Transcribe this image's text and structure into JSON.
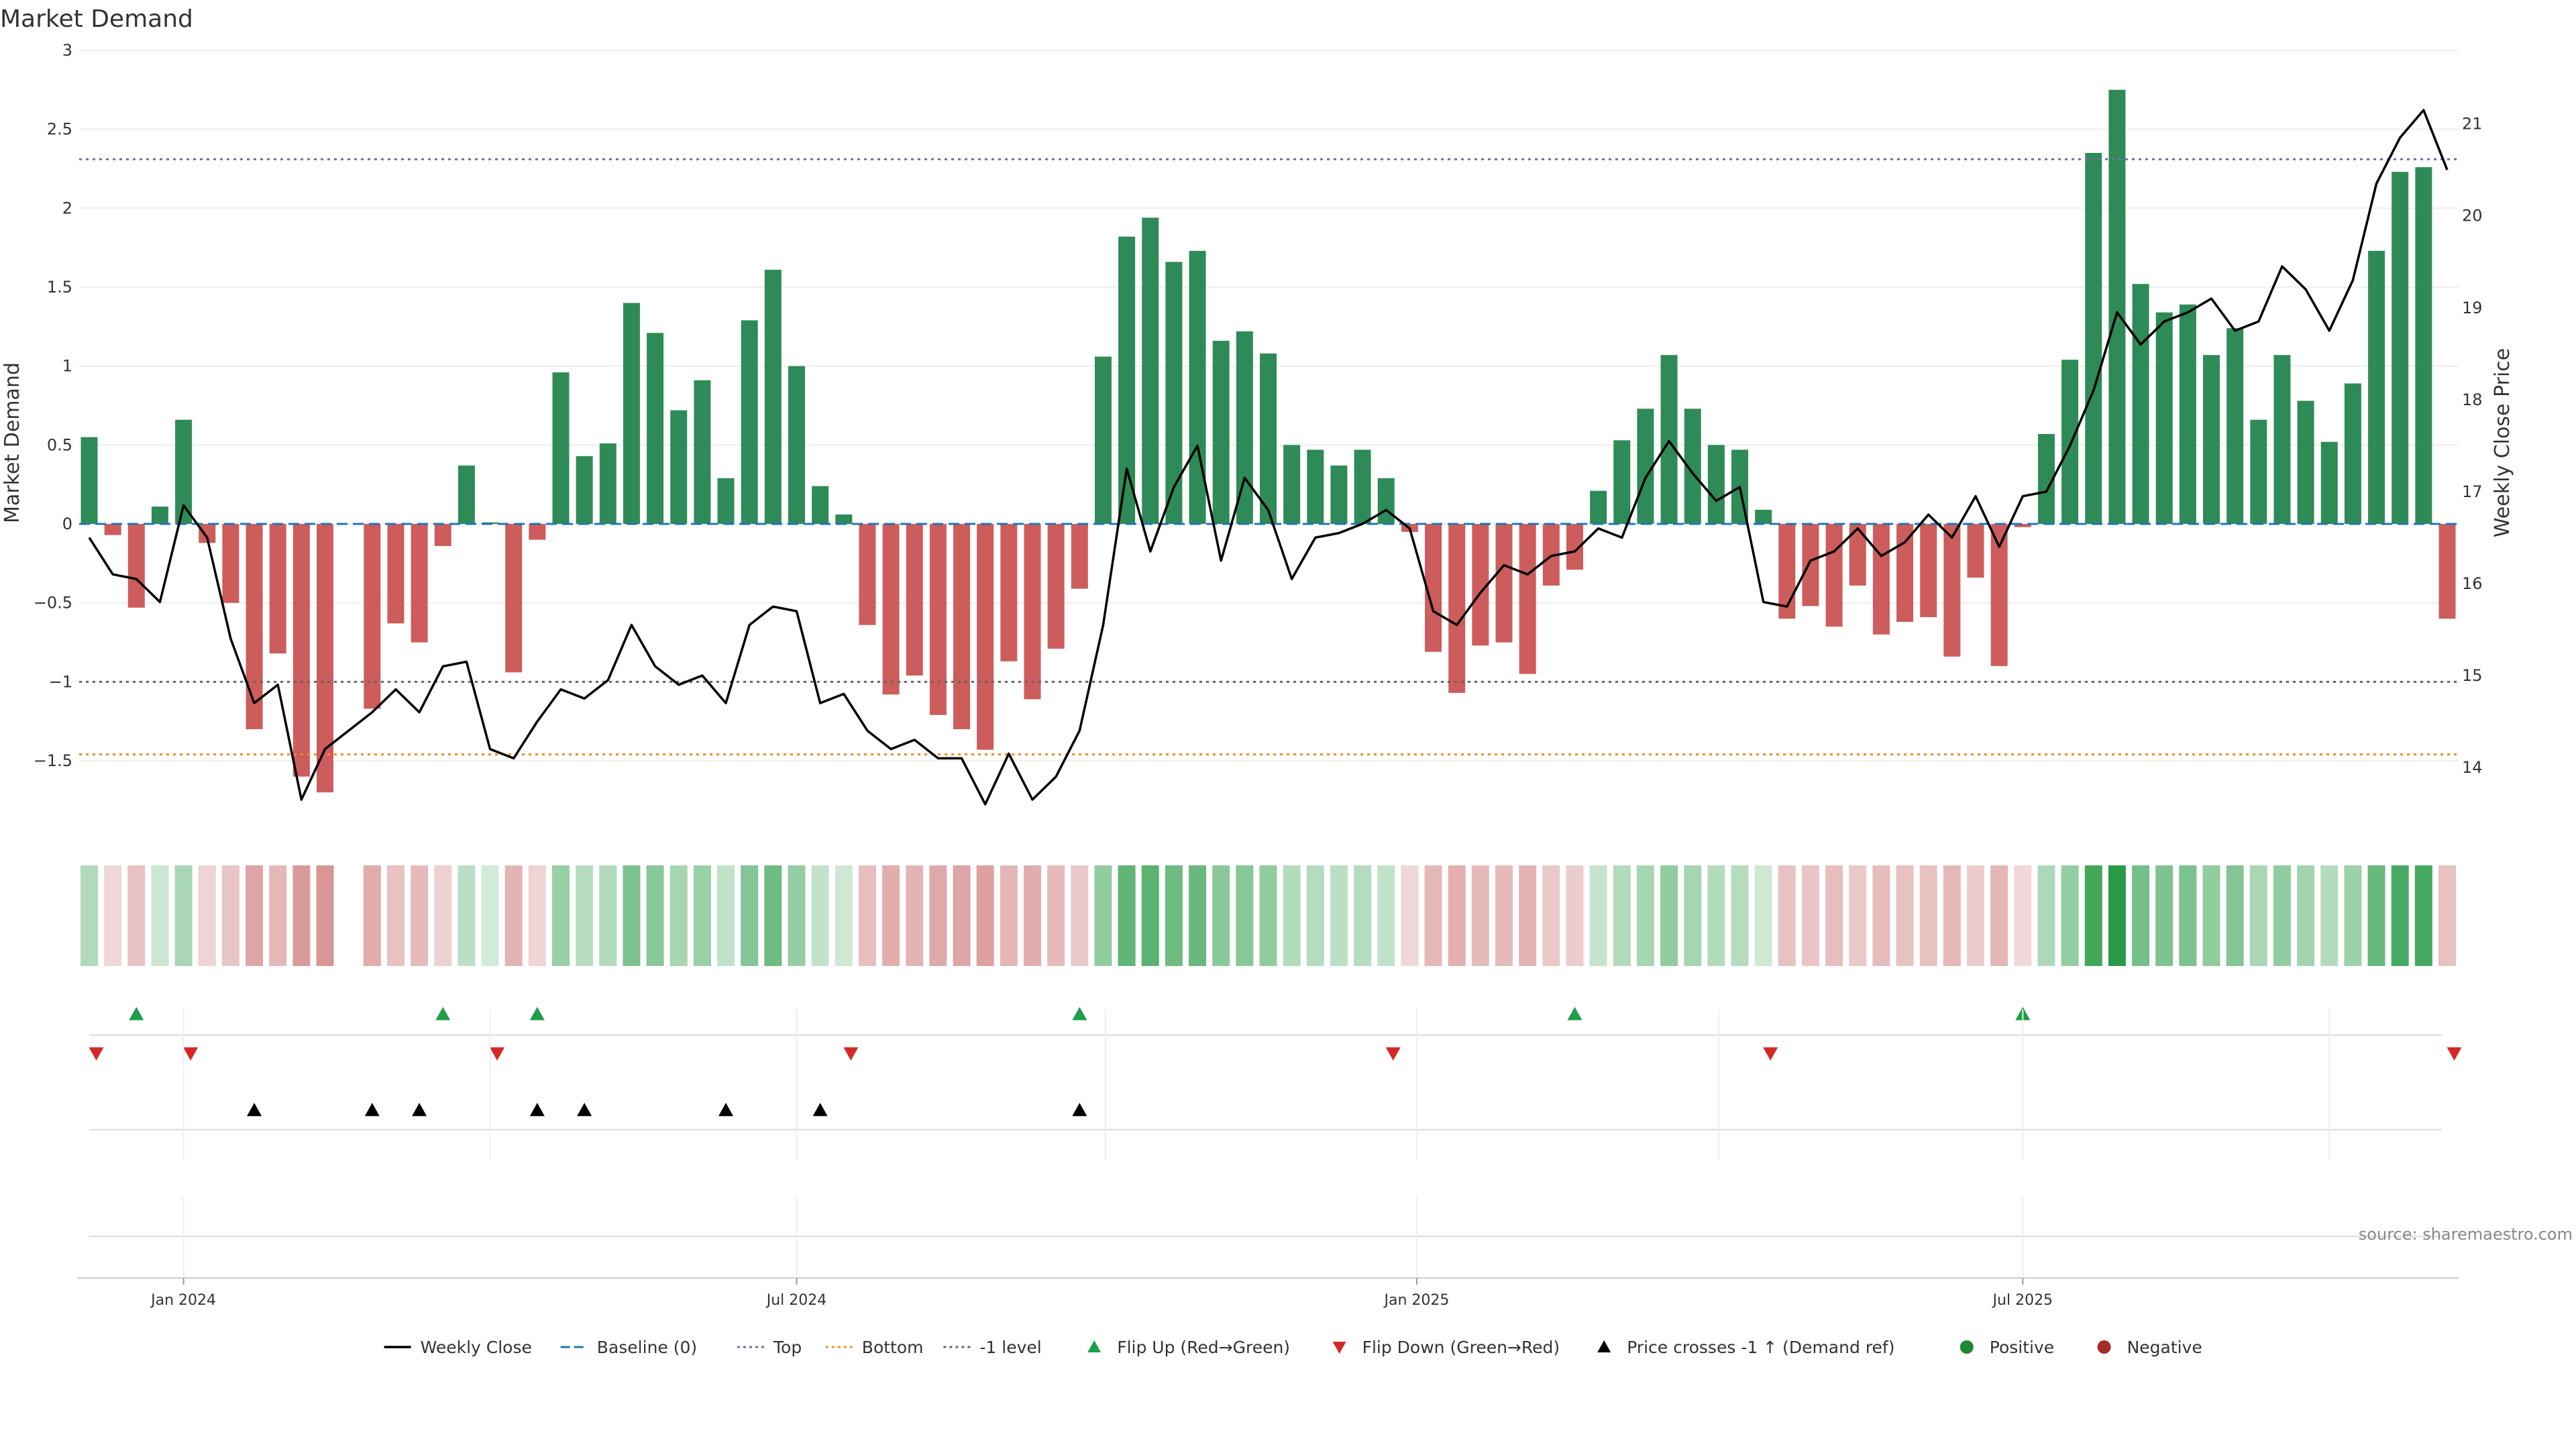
{
  "chart_data": {
    "type": "bar",
    "title": "Market Demand",
    "ylabel": "Market Demand",
    "y2label": "Weekly Close Price",
    "ylim": [
      -1.95,
      3.0
    ],
    "y2lim": [
      13.3,
      21.8
    ],
    "yticks": [
      "3",
      "2.5",
      "2",
      "1.5",
      "1",
      "0.5",
      "0",
      "−0.5",
      "−1",
      "−1.5"
    ],
    "ytick_values": [
      3,
      2.5,
      2,
      1.5,
      1,
      0.5,
      0,
      -0.5,
      -1,
      -1.5
    ],
    "y2ticks": [
      14,
      15,
      16,
      17,
      18,
      19,
      20,
      21
    ],
    "x_start_week_offset": -1.3,
    "xtick_labels": [
      "Jan 2024",
      "Jul 2024",
      "Jan 2025",
      "Jul 2025"
    ],
    "xtick_weeks": [
      4.0,
      30.0,
      56.3,
      82.0
    ],
    "extra_gridline_weeks": [
      17.0,
      43.1,
      69.1,
      95.0
    ],
    "reference_lines": {
      "top": 2.31,
      "bottom": -1.46,
      "minus_one": -1.0,
      "baseline": 0
    },
    "demand": [
      0.55,
      -0.07,
      -0.53,
      0.11,
      0.66,
      -0.12,
      -0.5,
      -1.3,
      -0.82,
      -1.6,
      -1.7,
      0,
      -1.17,
      -0.63,
      -0.75,
      -0.14,
      0.37,
      0.01,
      -0.94,
      -0.1,
      0.96,
      0.43,
      0.51,
      1.4,
      1.21,
      0.72,
      0.91,
      0.29,
      1.29,
      1.61,
      1.0,
      0.24,
      0.06,
      -0.64,
      -1.08,
      -0.96,
      -1.21,
      -1.3,
      -1.43,
      -0.87,
      -1.11,
      -0.79,
      -0.41,
      1.06,
      1.82,
      1.94,
      1.66,
      1.73,
      1.16,
      1.22,
      1.08,
      0.5,
      0.47,
      0.37,
      0.47,
      0.29,
      -0.05,
      -0.81,
      -1.07,
      -0.77,
      -0.75,
      -0.95,
      -0.39,
      -0.29,
      0.21,
      0.53,
      0.73,
      1.07,
      0.73,
      0.5,
      0.47,
      0.09,
      -0.6,
      -0.52,
      -0.65,
      -0.39,
      -0.7,
      -0.62,
      -0.59,
      -0.84,
      -0.34,
      -0.9,
      -0.02,
      0.57,
      1.04,
      2.35,
      2.75,
      1.52,
      1.34,
      1.39,
      1.07,
      1.24,
      0.66,
      1.07,
      0.78,
      0.52,
      0.89,
      1.73,
      2.23,
      2.26,
      -0.6
    ],
    "close": [
      16.5,
      16.1,
      16.05,
      15.8,
      16.85,
      16.5,
      15.4,
      14.7,
      14.9,
      13.65,
      14.2,
      14.4,
      14.6,
      14.85,
      14.6,
      15.1,
      15.15,
      14.2,
      14.1,
      14.5,
      14.85,
      14.75,
      14.95,
      15.55,
      15.1,
      14.9,
      15.0,
      14.7,
      15.55,
      15.75,
      15.7,
      14.7,
      14.8,
      14.4,
      14.2,
      14.3,
      14.1,
      14.1,
      13.6,
      14.15,
      13.65,
      13.9,
      14.4,
      15.55,
      17.25,
      16.35,
      17.05,
      17.5,
      16.25,
      17.15,
      16.8,
      16.05,
      16.5,
      16.55,
      16.65,
      16.8,
      16.6,
      15.7,
      15.55,
      15.9,
      16.2,
      16.1,
      16.3,
      16.35,
      16.6,
      16.5,
      17.15,
      17.55,
      17.2,
      16.9,
      17.05,
      15.8,
      15.75,
      16.25,
      16.35,
      16.6,
      16.3,
      16.45,
      16.75,
      16.5,
      16.95,
      16.4,
      16.95,
      17.0,
      17.5,
      18.1,
      18.95,
      18.6,
      18.85,
      18.95,
      19.1,
      18.75,
      18.85,
      19.45,
      19.2,
      18.75,
      19.3,
      20.35,
      20.85,
      21.15,
      20.5
    ],
    "flip_up_weeks": [
      2,
      15,
      19,
      42,
      63,
      82
    ],
    "flip_down_weeks": [
      0.3,
      4.3,
      17.3,
      32.3,
      55.3,
      71.3,
      100.3
    ],
    "cross_weeks": [
      7,
      12,
      14,
      19,
      21,
      27,
      31,
      42
    ],
    "colors": {
      "positive": "#2e8b57",
      "negative": "#cd5c5c",
      "line": "#000000",
      "baseline": "#1f77b4",
      "top": "#7b68b3",
      "bottom": "#ef8c1f",
      "minus_one": "#666666",
      "flip_up": "#1e9e4a",
      "flip_down": "#d62728",
      "cross": "#000000",
      "legend_positive": "#1e8a32",
      "legend_negative": "#a52a2a"
    },
    "legend": [
      {
        "label": "Weekly Close",
        "kind": "line",
        "color": "#000000"
      },
      {
        "label": "Baseline (0)",
        "kind": "dash",
        "color": "#1f77b4"
      },
      {
        "label": "Top",
        "kind": "dot",
        "color": "#7b68b3"
      },
      {
        "label": "Bottom",
        "kind": "dot",
        "color": "#ef8c1f"
      },
      {
        "label": "-1 level",
        "kind": "dot",
        "color": "#666666"
      },
      {
        "label": "Flip Up (Red→Green)",
        "kind": "up",
        "color": "#1e9e4a"
      },
      {
        "label": "Flip Down (Green→Red)",
        "kind": "down",
        "color": "#d62728"
      },
      {
        "label": "Price crosses -1 ↑ (Demand ref)",
        "kind": "up",
        "color": "#000000"
      },
      {
        "label": "Positive",
        "kind": "circle",
        "color": "#1e8a32"
      },
      {
        "label": "Negative",
        "kind": "circle",
        "color": "#a52a2a"
      }
    ],
    "source": "source: sharemaestro.com"
  }
}
